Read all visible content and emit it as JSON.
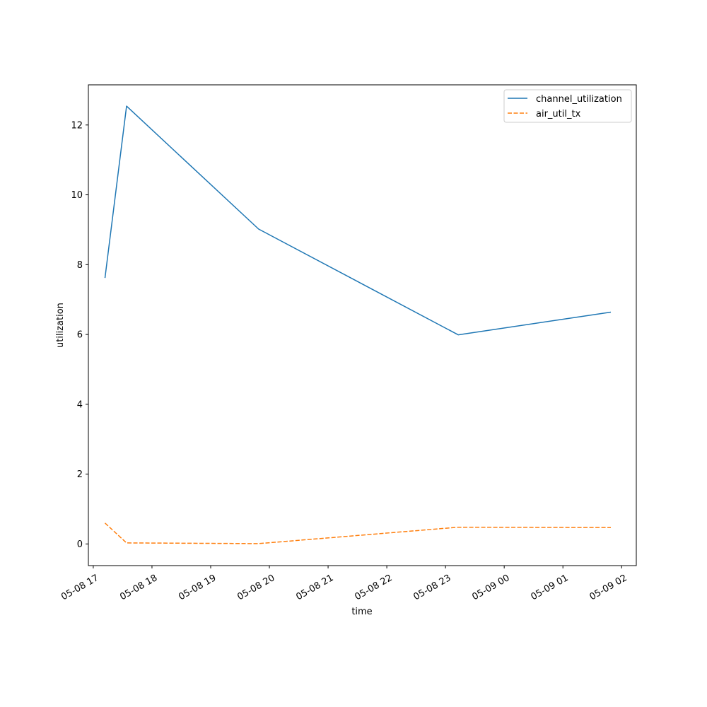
{
  "chart_data": {
    "type": "line",
    "xlabel": "time",
    "ylabel": "utilization",
    "xlim": [
      "2024-05-08 16:55",
      "2024-05-09 02:15"
    ],
    "ylim": [
      -0.62,
      13.15
    ],
    "x_ticks": [
      "05-08 17",
      "05-08 18",
      "05-08 19",
      "05-08 20",
      "05-08 21",
      "05-08 22",
      "05-08 23",
      "05-09 00",
      "05-09 01",
      "05-09 02"
    ],
    "y_ticks": [
      "0",
      "2",
      "4",
      "6",
      "8",
      "10",
      "12"
    ],
    "grid": false,
    "legend_position": "top-right",
    "series": [
      {
        "name": "channel_utilization",
        "color": "#1f77b4",
        "line_style": "solid",
        "x": [
          "2024-05-08 17:12",
          "2024-05-08 17:34",
          "2024-05-08 19:49",
          "2024-05-08 23:13",
          "2024-05-09 01:49"
        ],
        "values": [
          7.62,
          12.54,
          9.02,
          5.99,
          6.64
        ]
      },
      {
        "name": "air_util_tx",
        "color": "#ff7f0e",
        "line_style": "dashed",
        "x": [
          "2024-05-08 17:12",
          "2024-05-08 17:34",
          "2024-05-08 19:49",
          "2024-05-08 23:13",
          "2024-05-09 01:49"
        ],
        "values": [
          0.6,
          0.03,
          0.01,
          0.48,
          0.47
        ]
      }
    ]
  }
}
